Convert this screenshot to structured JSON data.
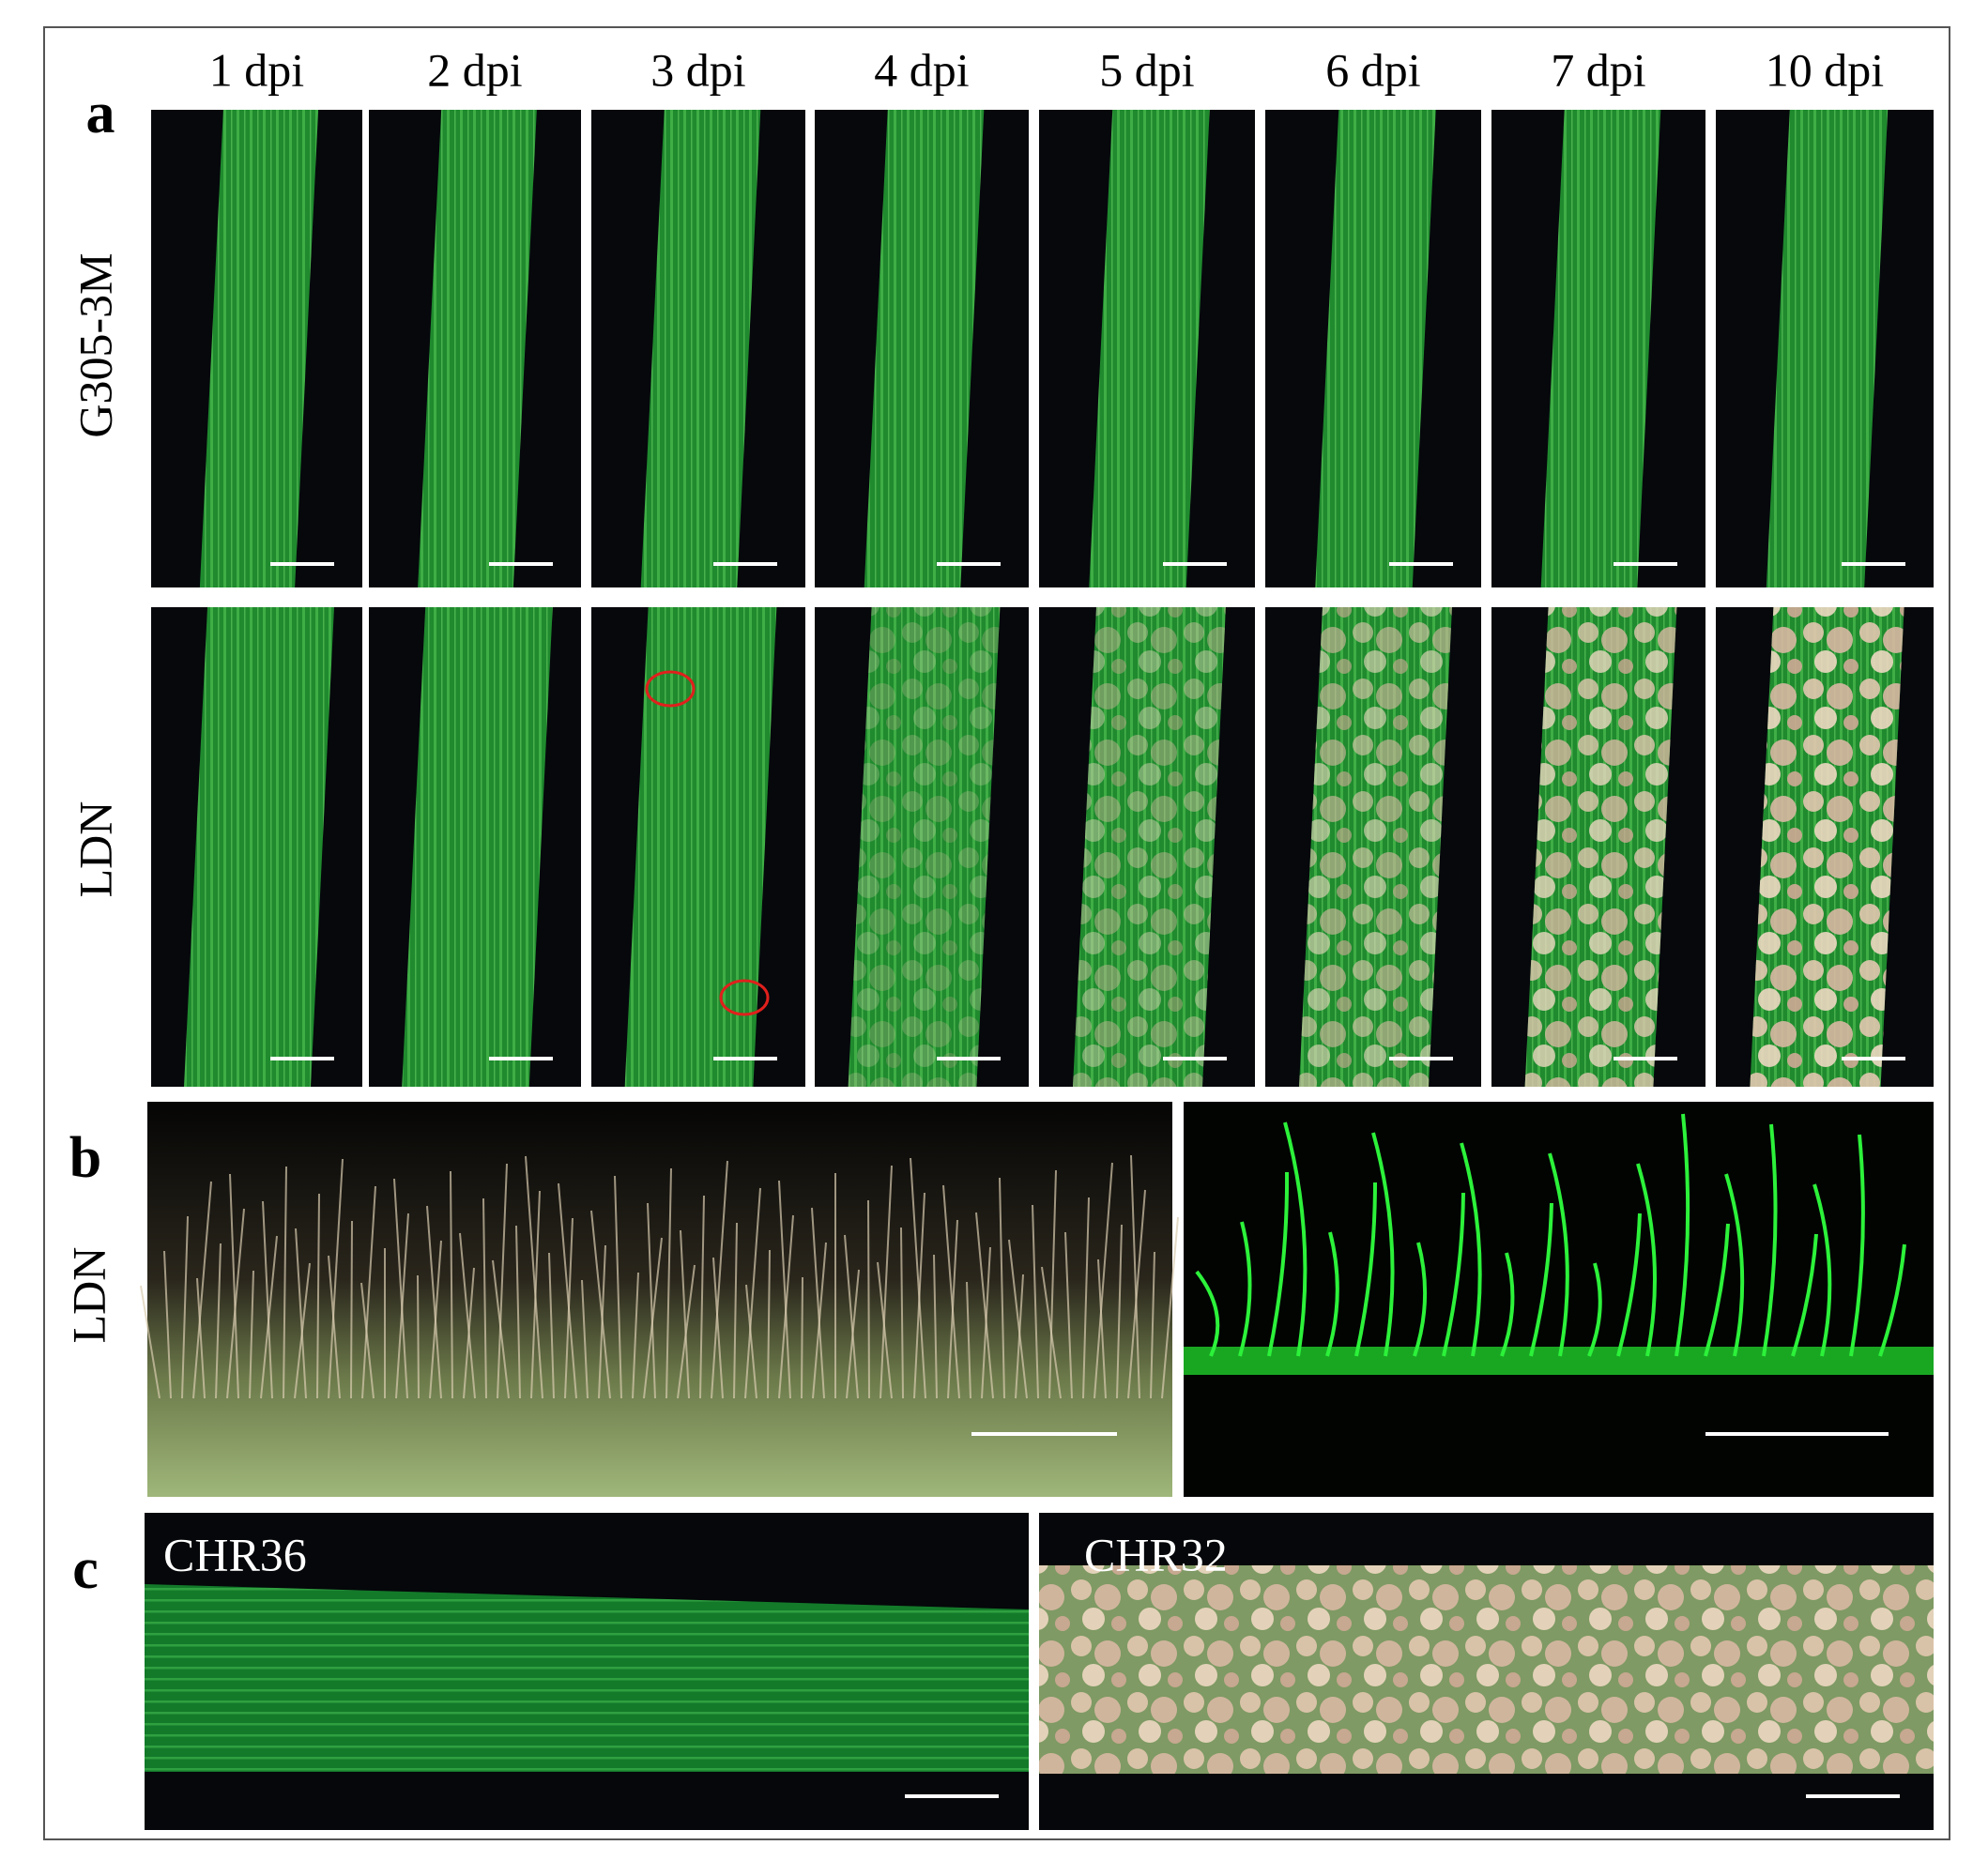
{
  "figure": {
    "panel_a": {
      "label": "a",
      "columns": [
        "1 dpi",
        "2 dpi",
        "3 dpi",
        "4 dpi",
        "5 dpi",
        "6 dpi",
        "7 dpi",
        "10 dpi"
      ],
      "rows": [
        "G305-3M",
        "LDN"
      ]
    },
    "panel_b": {
      "label": "b",
      "row": "LDN"
    },
    "panel_c": {
      "label": "c",
      "images": [
        "CHR36",
        "CHR32"
      ]
    }
  }
}
